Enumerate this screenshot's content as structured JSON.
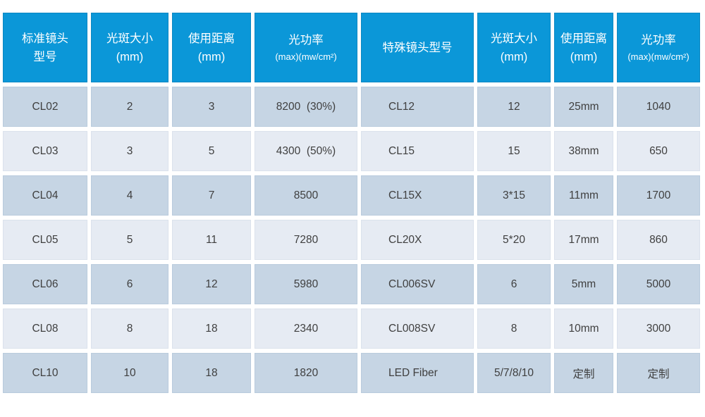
{
  "colors": {
    "header_bg": "#0b97d8",
    "row_dark": "#c6d5e4",
    "row_light": "#e6ebf3",
    "text": "#3f3f3f"
  },
  "table": {
    "columns": [
      {
        "line1": "标准镜头",
        "line2": "型号"
      },
      {
        "line1": "光斑大小",
        "line2": "(mm)"
      },
      {
        "line1": "使用距离",
        "line2": "(mm)"
      },
      {
        "line1": "光功率",
        "line2": "(max)(mw/cm²)"
      },
      {
        "line1": "特殊镜头型号"
      },
      {
        "line1": "光斑大小",
        "line2": "(mm)"
      },
      {
        "line1": "使用距离",
        "line2": "(mm)"
      },
      {
        "line1": "光功率",
        "line2": "(max)(mw/cm²)"
      }
    ],
    "rows": [
      [
        "CL02",
        "2",
        "3",
        "8200  (30%)",
        "CL12",
        "12",
        "25mm",
        "1040"
      ],
      [
        "CL03",
        "3",
        "5",
        "4300  (50%)",
        "CL15",
        "15",
        "38mm",
        "650"
      ],
      [
        "CL04",
        "4",
        "7",
        "8500",
        "CL15X",
        "3*15",
        "11mm",
        "1700"
      ],
      [
        "CL05",
        "5",
        "11",
        "7280",
        "CL20X",
        "5*20",
        "17mm",
        "860"
      ],
      [
        "CL06",
        "6",
        "12",
        "5980",
        "CL006SV",
        "6",
        "5mm",
        "5000"
      ],
      [
        "CL08",
        "8",
        "18",
        "2340",
        "CL008SV",
        "8",
        "10mm",
        "3000"
      ],
      [
        "CL10",
        "10",
        "18",
        "1820",
        "LED Fiber",
        "5/7/8/10",
        "定制",
        "定制"
      ]
    ]
  }
}
